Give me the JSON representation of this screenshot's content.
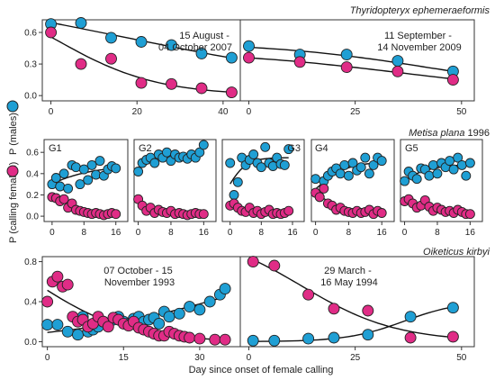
{
  "colors": {
    "males": "#1f9fd4",
    "females": "#e02c86",
    "fit": "#111111"
  },
  "legend": {
    "males_label": "P (males)",
    "females_label": "P (calling females)"
  },
  "xlabel": "Day since onset of female calling",
  "chart_data": [
    {
      "type": "scatter",
      "species": "Thyridopteryx ephemeraeformis",
      "title": "15 August -\n04 October 2007",
      "xlim": [
        -2,
        44
      ],
      "ylim": [
        -0.05,
        0.72
      ],
      "xticks": [
        0,
        20,
        40
      ],
      "yticks": [
        0.0,
        0.3,
        0.6
      ],
      "series": [
        {
          "name": "P (males)",
          "x": [
            0,
            7,
            14,
            21,
            28,
            35,
            42
          ],
          "y": [
            0.68,
            0.69,
            0.55,
            0.51,
            0.48,
            0.4,
            0.36
          ]
        },
        {
          "name": "P (calling females)",
          "x": [
            0,
            7,
            14,
            21,
            28,
            35,
            42
          ],
          "y": [
            0.6,
            0.3,
            0.35,
            0.12,
            0.11,
            0.07,
            0.03
          ]
        }
      ]
    },
    {
      "type": "scatter",
      "title": "11 September -\n14 November 2009",
      "xlim": [
        -2,
        53
      ],
      "ylim": [
        -0.05,
        0.72
      ],
      "xticks": [
        0,
        25,
        50
      ],
      "yticks": [],
      "series": [
        {
          "name": "P (males)",
          "x": [
            0,
            12,
            23,
            35,
            48
          ],
          "y": [
            0.47,
            0.39,
            0.39,
            0.33,
            0.23
          ]
        },
        {
          "name": "P (calling females)",
          "x": [
            0,
            12,
            23,
            35,
            48
          ],
          "y": [
            0.36,
            0.32,
            0.27,
            0.23,
            0.15
          ]
        }
      ]
    },
    {
      "type": "scatter",
      "species": "Metisa plana",
      "species_year": "1996",
      "title": "G1",
      "xlim": [
        -2,
        19
      ],
      "ylim": [
        -0.05,
        0.72
      ],
      "xticks": [
        0,
        8,
        16
      ],
      "yticks": [
        0.0,
        0.2,
        0.4,
        0.6
      ],
      "series": [
        {
          "name": "P (males)",
          "x": [
            0,
            1,
            2,
            3,
            4,
            5,
            6,
            7,
            8,
            9,
            10,
            11,
            12,
            13,
            14,
            15,
            16
          ],
          "y": [
            0.3,
            0.36,
            0.28,
            0.4,
            0.26,
            0.48,
            0.46,
            0.3,
            0.44,
            0.34,
            0.48,
            0.39,
            0.52,
            0.38,
            0.44,
            0.47,
            0.45
          ]
        },
        {
          "name": "P (calling females)",
          "x": [
            0,
            1,
            2,
            3,
            4,
            5,
            6,
            7,
            8,
            9,
            10,
            11,
            12,
            13,
            14,
            15,
            16
          ],
          "y": [
            0.18,
            0.17,
            0.14,
            0.16,
            0.08,
            0.12,
            0.06,
            0.05,
            0.04,
            0.03,
            0.02,
            0.03,
            0.02,
            0.01,
            0.02,
            0.03,
            0.02
          ]
        }
      ]
    },
    {
      "type": "scatter",
      "title": "G2",
      "xlim": [
        -1,
        19
      ],
      "ylim": [
        -0.05,
        0.72
      ],
      "xticks": [
        0,
        8,
        16
      ],
      "yticks": [],
      "series": [
        {
          "name": "P (males)",
          "x": [
            0,
            1,
            2,
            3,
            4,
            5,
            6,
            7,
            8,
            9,
            10,
            11,
            12,
            13,
            14,
            15,
            16
          ],
          "y": [
            0.42,
            0.5,
            0.53,
            0.55,
            0.5,
            0.58,
            0.55,
            0.6,
            0.52,
            0.58,
            0.55,
            0.56,
            0.54,
            0.58,
            0.55,
            0.6,
            0.67
          ]
        },
        {
          "name": "P (calling females)",
          "x": [
            0,
            1,
            2,
            3,
            4,
            5,
            6,
            7,
            8,
            9,
            10,
            11,
            12,
            13,
            14,
            15,
            16
          ],
          "y": [
            0.16,
            0.1,
            0.05,
            0.08,
            0.03,
            0.06,
            0.04,
            0.03,
            0.05,
            0.02,
            0.03,
            0.02,
            0.01,
            0.02,
            0.03,
            0.02,
            0.02
          ]
        }
      ]
    },
    {
      "type": "scatter",
      "title": "G3",
      "xlim": [
        -2,
        19
      ],
      "ylim": [
        -0.05,
        0.72
      ],
      "xticks": [
        0,
        8,
        16
      ],
      "yticks": [],
      "series": [
        {
          "name": "P (males)",
          "x": [
            0,
            1,
            2,
            3,
            4,
            5,
            6,
            7,
            8,
            9,
            10,
            11,
            12,
            13,
            14,
            15
          ],
          "y": [
            0.5,
            0.2,
            0.32,
            0.55,
            0.48,
            0.53,
            0.58,
            0.5,
            0.46,
            0.65,
            0.5,
            0.47,
            0.55,
            0.49,
            0.48,
            0.63
          ]
        },
        {
          "name": "P (calling females)",
          "x": [
            0,
            1,
            2,
            3,
            4,
            5,
            6,
            7,
            8,
            9,
            10,
            11,
            12,
            13,
            14,
            15
          ],
          "y": [
            0.1,
            0.12,
            0.08,
            0.05,
            0.04,
            0.08,
            0.03,
            0.05,
            0.02,
            0.04,
            0.06,
            0.02,
            0.03,
            0.02,
            0.03,
            0.05
          ]
        }
      ]
    },
    {
      "type": "scatter",
      "title": "G4",
      "xlim": [
        -1,
        19
      ],
      "ylim": [
        -0.05,
        0.72
      ],
      "xticks": [
        0,
        8,
        16
      ],
      "yticks": [],
      "series": [
        {
          "name": "P (males)",
          "x": [
            0,
            1,
            2,
            3,
            4,
            5,
            6,
            7,
            8,
            9,
            10,
            11,
            12,
            13,
            14,
            15,
            16
          ],
          "y": [
            0.35,
            0.18,
            0.33,
            0.38,
            0.42,
            0.45,
            0.4,
            0.48,
            0.38,
            0.5,
            0.43,
            0.46,
            0.55,
            0.4,
            0.48,
            0.55,
            0.52
          ]
        },
        {
          "name": "P (calling females)",
          "x": [
            0,
            1,
            2,
            3,
            4,
            5,
            6,
            7,
            8,
            9,
            10,
            11,
            12,
            13,
            14,
            15,
            16
          ],
          "y": [
            0.22,
            0.18,
            0.26,
            0.12,
            0.1,
            0.06,
            0.08,
            0.05,
            0.04,
            0.03,
            0.05,
            0.03,
            0.04,
            0.06,
            0.02,
            0.05,
            0.03
          ]
        }
      ]
    },
    {
      "type": "scatter",
      "title": "G5",
      "xlim": [
        -1,
        19
      ],
      "ylim": [
        -0.05,
        0.72
      ],
      "xticks": [
        0,
        8,
        16
      ],
      "yticks": [],
      "series": [
        {
          "name": "P (males)",
          "x": [
            0,
            1,
            2,
            3,
            4,
            5,
            6,
            7,
            8,
            9,
            10,
            11,
            12,
            13,
            14,
            15,
            16
          ],
          "y": [
            0.33,
            0.42,
            0.38,
            0.35,
            0.45,
            0.44,
            0.38,
            0.48,
            0.4,
            0.5,
            0.46,
            0.52,
            0.44,
            0.55,
            0.48,
            0.38,
            0.5
          ]
        },
        {
          "name": "P (calling females)",
          "x": [
            0,
            1,
            2,
            3,
            4,
            5,
            6,
            7,
            8,
            9,
            10,
            11,
            12,
            13,
            14,
            15,
            16
          ],
          "y": [
            0.14,
            0.16,
            0.12,
            0.08,
            0.1,
            0.15,
            0.09,
            0.05,
            0.08,
            0.06,
            0.04,
            0.05,
            0.03,
            0.06,
            0.04,
            0.02,
            0.02
          ]
        }
      ]
    },
    {
      "type": "scatter",
      "species": "Oiketicus kirbyi",
      "title": "07 October - 15\nNovember 1993",
      "xlim": [
        -1,
        38
      ],
      "ylim": [
        -0.05,
        0.85
      ],
      "xticks": [
        0,
        15,
        30
      ],
      "yticks": [
        0.0,
        0.4,
        0.8
      ],
      "series": [
        {
          "name": "P (males)",
          "x": [
            0,
            2,
            4,
            6,
            7,
            8,
            9,
            10,
            11,
            12,
            13,
            14,
            15,
            16,
            17,
            18,
            19,
            20,
            21,
            22,
            23,
            24,
            26,
            28,
            30,
            32,
            34,
            35
          ],
          "y": [
            0.17,
            0.17,
            0.1,
            0.07,
            0.25,
            0.1,
            0.12,
            0.15,
            0.2,
            0.18,
            0.22,
            0.25,
            0.2,
            0.18,
            0.23,
            0.25,
            0.2,
            0.22,
            0.24,
            0.18,
            0.3,
            0.25,
            0.28,
            0.35,
            0.32,
            0.4,
            0.47,
            0.53
          ]
        },
        {
          "name": "P (calling females)",
          "x": [
            0,
            1,
            2,
            3,
            4,
            5,
            6,
            7,
            8,
            9,
            10,
            11,
            12,
            13,
            14,
            15,
            16,
            17,
            18,
            19,
            20,
            21,
            22,
            23,
            24,
            25,
            26,
            27,
            28,
            30,
            33,
            35
          ],
          "y": [
            0.4,
            0.6,
            0.65,
            0.55,
            0.57,
            0.25,
            0.2,
            0.22,
            0.15,
            0.18,
            0.25,
            0.2,
            0.15,
            0.24,
            0.22,
            0.18,
            0.16,
            0.2,
            0.14,
            0.12,
            0.1,
            0.08,
            0.06,
            0.06,
            0.1,
            0.08,
            0.06,
            0.05,
            0.04,
            0.03,
            0.02,
            0.02
          ]
        }
      ]
    },
    {
      "type": "scatter",
      "title": "29 March -\n16 May 1994",
      "xlim": [
        -2,
        53
      ],
      "ylim": [
        -0.05,
        0.85
      ],
      "xticks": [
        0,
        25,
        50
      ],
      "yticks": [],
      "series": [
        {
          "name": "P (males)",
          "x": [
            1,
            6,
            14,
            20,
            28,
            38,
            48
          ],
          "y": [
            0.01,
            0.01,
            0.03,
            0.04,
            0.07,
            0.25,
            0.34
          ]
        },
        {
          "name": "P (calling females)",
          "x": [
            1,
            6,
            14,
            20,
            28,
            38,
            48
          ],
          "y": [
            0.8,
            0.76,
            0.47,
            0.33,
            0.31,
            0.04,
            0.05
          ]
        }
      ]
    }
  ]
}
